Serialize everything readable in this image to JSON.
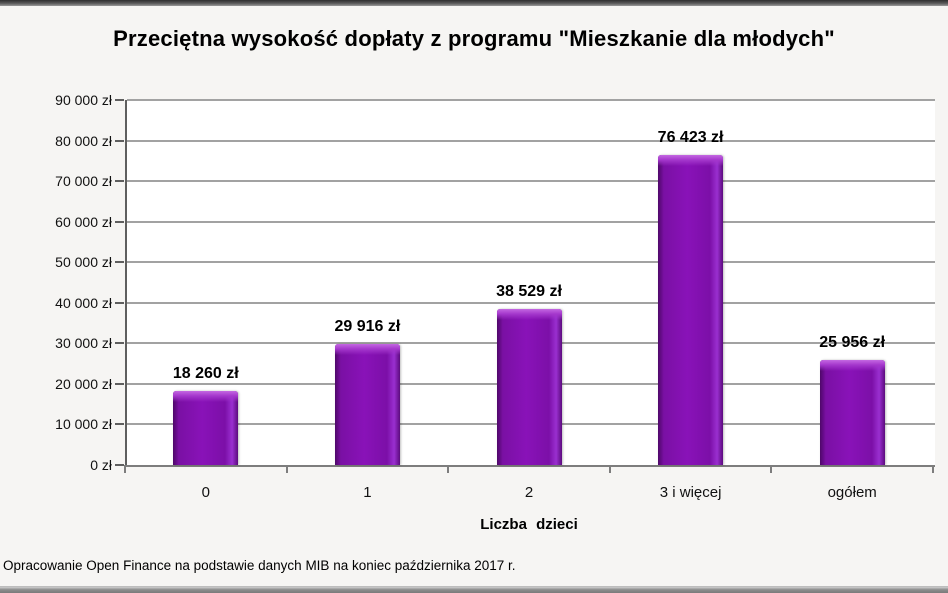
{
  "window": {
    "top_edge": "window-chrome-top",
    "bottom_edge": "window-chrome-bottom"
  },
  "chart_data": {
    "type": "bar",
    "title": "Przeciętna wysokość dopłaty z programu \"Mieszkanie dla młodych\"",
    "categories": [
      "0",
      "1",
      "2",
      "3 i więcej",
      "ogółem"
    ],
    "values": [
      18260,
      29916,
      38529,
      76423,
      25956
    ],
    "value_labels": [
      "18 260 zł",
      "29 916 zł",
      "38 529 zł",
      "76 423 zł",
      "25 956 zł"
    ],
    "xlabel": "Liczba dzieci",
    "ylabel": "",
    "ylim": [
      0,
      90000
    ],
    "ytick_step": 10000,
    "y_tick_labels": [
      "0 zł",
      "10 000 zł",
      "20 000 zł",
      "30 000 zł",
      "40 000 zł",
      "50 000 zł",
      "60 000 zł",
      "70 000 zł",
      "80 000 zł",
      "90 000 zł"
    ],
    "grid": "horizontal",
    "legend": "none",
    "colors": {
      "bar_fill": "#8912b8",
      "bar_edge_dark": "#4e0769",
      "bar_highlight": "#c468e2",
      "gridline": "#a2a2a2",
      "axis": "#5f5f5f",
      "plot_background": "#ffffff",
      "page_background": "#f6f5f3"
    }
  },
  "footer": {
    "source": "Opracowanie Open Finance na podstawie danych MIB na koniec października 2017 r."
  }
}
